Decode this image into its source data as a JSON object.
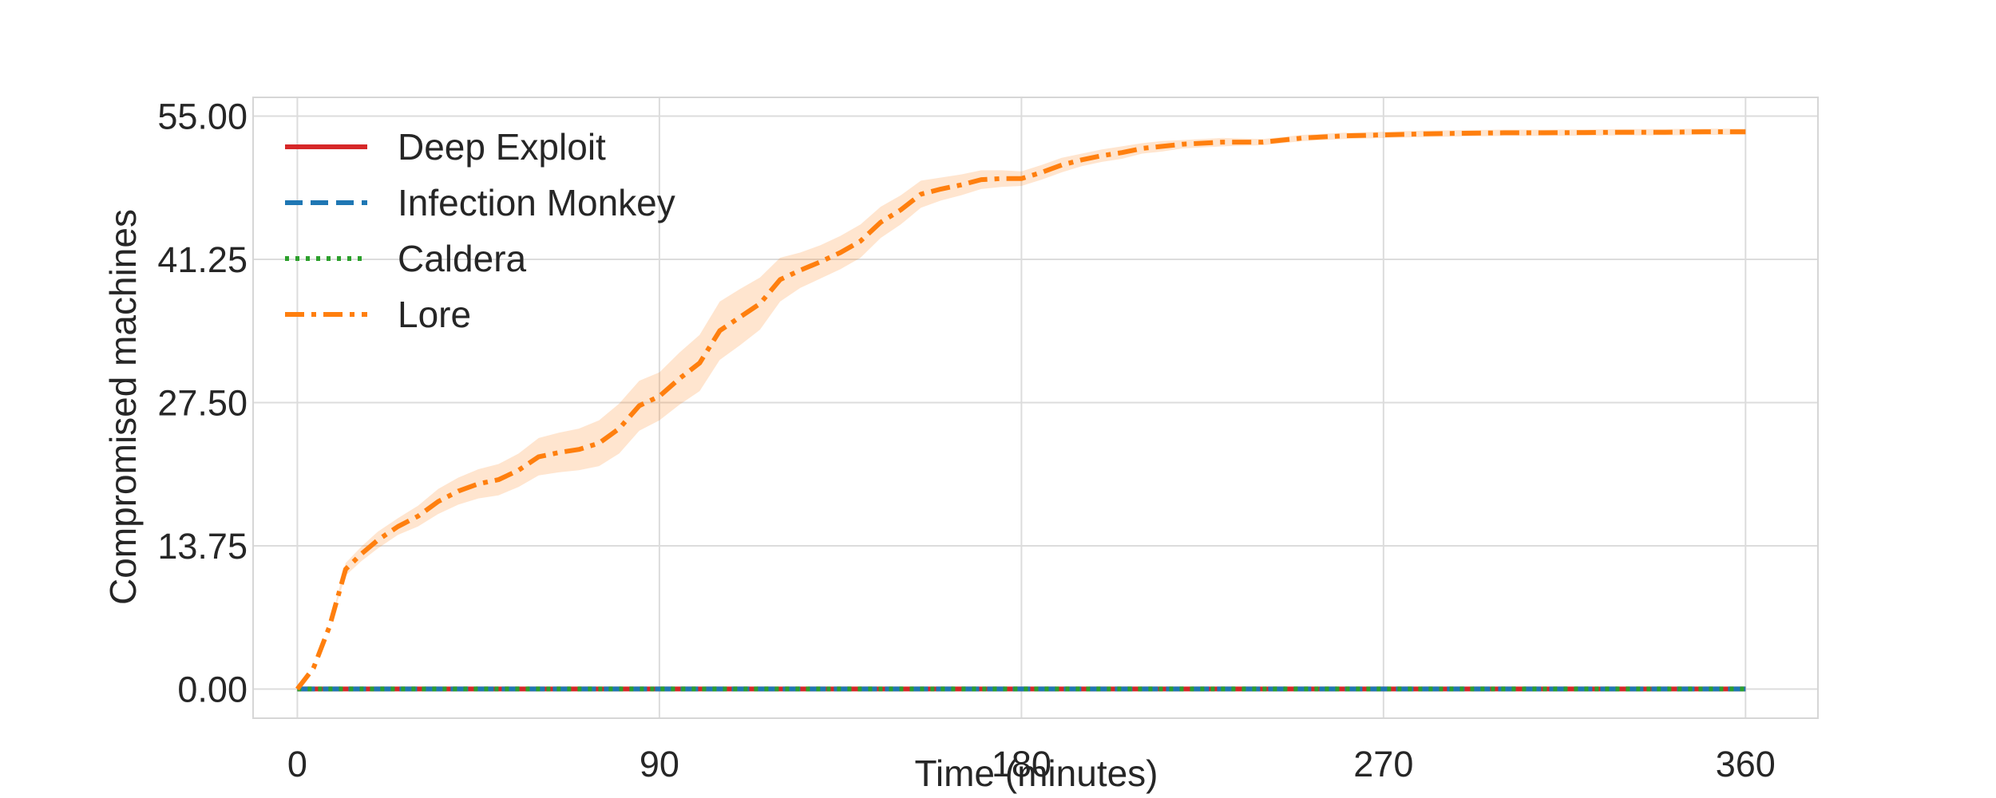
{
  "chart_data": {
    "type": "line",
    "title": "",
    "xlabel": "Time (minutes)",
    "ylabel": "Compromised machines",
    "xlim": [
      -11,
      378
    ],
    "ylim": [
      -2.8,
      56.8
    ],
    "x_ticks": [
      0,
      90,
      180,
      270,
      360
    ],
    "x_tick_labels": [
      "0",
      "90",
      "180",
      "270",
      "360"
    ],
    "y_ticks": [
      0,
      13.75,
      27.5,
      41.25,
      55
    ],
    "y_tick_labels": [
      "0.00",
      "13.75",
      "27.50",
      "41.25",
      "55.00"
    ],
    "grid": true,
    "legend_position": "top-left",
    "series": [
      {
        "name": "Deep Exploit",
        "color": "#d62728",
        "style": "solid",
        "x": [
          0,
          360
        ],
        "y": [
          0,
          0
        ]
      },
      {
        "name": "Infection Monkey",
        "color": "#1f77b4",
        "style": "dashed",
        "x": [
          0,
          360
        ],
        "y": [
          0,
          0
        ]
      },
      {
        "name": "Caldera",
        "color": "#2ca02c",
        "style": "dotted",
        "x": [
          0,
          360
        ],
        "y": [
          0,
          0
        ]
      },
      {
        "name": "Lore",
        "color": "#ff7f0e",
        "style": "dashdot",
        "x": [
          0,
          4,
          8,
          12,
          16,
          20,
          25,
          30,
          35,
          40,
          45,
          50,
          55,
          60,
          65,
          70,
          75,
          80,
          85,
          90,
          95,
          100,
          105,
          110,
          115,
          120,
          125,
          130,
          135,
          140,
          145,
          150,
          155,
          160,
          165,
          170,
          175,
          180,
          185,
          190,
          195,
          200,
          205,
          210,
          215,
          220,
          230,
          240,
          250,
          260,
          270,
          280,
          290,
          300,
          310,
          320,
          330,
          340,
          350,
          360
        ],
        "y": [
          0,
          2,
          6,
          11.5,
          13,
          14.3,
          15.6,
          16.6,
          18,
          19,
          19.7,
          20.1,
          21,
          22.3,
          22.7,
          23,
          23.6,
          25,
          27.2,
          28.1,
          29.8,
          31.3,
          34.4,
          35.7,
          37,
          39.3,
          40.2,
          41,
          41.9,
          43,
          44.8,
          46,
          47.5,
          48,
          48.4,
          48.9,
          49,
          49,
          49.6,
          50.3,
          50.8,
          51.2,
          51.5,
          51.9,
          52.1,
          52.3,
          52.5,
          52.5,
          52.9,
          53.1,
          53.2,
          53.3,
          53.35,
          53.4,
          53.4,
          53.42,
          53.45,
          53.45,
          53.5,
          53.5
        ],
        "band_low": [
          0,
          2,
          6,
          10.9,
          12.3,
          13.5,
          14.8,
          15.6,
          16.8,
          17.7,
          18.3,
          18.6,
          19.4,
          20.5,
          20.8,
          21,
          21.4,
          22.6,
          24.8,
          25.8,
          27.3,
          28.6,
          31.6,
          33,
          34.5,
          37.2,
          38.5,
          39.4,
          40.3,
          41.4,
          43.3,
          44.6,
          46.2,
          46.9,
          47.4,
          48,
          48.2,
          48.3,
          48.9,
          49.6,
          50.2,
          50.6,
          50.9,
          51.4,
          51.6,
          51.9,
          52.1,
          52.2,
          52.6,
          52.8,
          52.9,
          53,
          53.05,
          53.1,
          53.1,
          53.12,
          53.15,
          53.15,
          53.2,
          53.2
        ],
        "band_high": [
          0,
          2,
          6,
          12.1,
          13.7,
          15.1,
          16.4,
          17.6,
          19.2,
          20.3,
          21.1,
          21.6,
          22.6,
          24.1,
          24.6,
          25,
          25.8,
          27.4,
          29.6,
          30.4,
          32.3,
          34,
          37.2,
          38.4,
          39.5,
          41.4,
          41.9,
          42.6,
          43.5,
          44.6,
          46.3,
          47.4,
          48.8,
          49.1,
          49.4,
          49.8,
          49.8,
          49.7,
          50.3,
          51,
          51.4,
          51.8,
          52.1,
          52.4,
          52.6,
          52.7,
          52.9,
          52.8,
          53.2,
          53.4,
          53.5,
          53.6,
          53.65,
          53.7,
          53.7,
          53.72,
          53.75,
          53.75,
          53.8,
          53.8
        ]
      }
    ]
  }
}
